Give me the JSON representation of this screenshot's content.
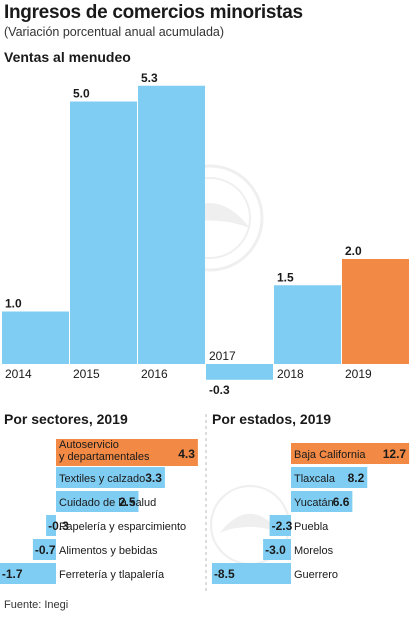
{
  "header": {
    "title": "Ingresos de comercios minoristas",
    "subtitle": "(Variación porcentual anual acumulada)"
  },
  "footer": {
    "source": "Fuente: Inegi"
  },
  "colors": {
    "normal": "#7fcdf3",
    "highlight": "#f28a45",
    "text": "#1a1a1a"
  },
  "chart_data": [
    {
      "type": "bar",
      "title": "Ventas al menudeo",
      "categories": [
        "2014",
        "2015",
        "2016",
        "2017",
        "2018",
        "2019"
      ],
      "values": [
        1.0,
        5.0,
        5.3,
        -0.3,
        1.5,
        2.0
      ],
      "highlight": [
        "2019"
      ]
    },
    {
      "type": "bar",
      "orientation": "horizontal",
      "title": "Por sectores, 2019",
      "categories": [
        "Autoservicio y departamentales",
        "Textiles y calzado",
        "Cuidado de la salud",
        "Papelería y esparcimiento",
        "Alimentos y bebidas",
        "Ferretería y tlapalería"
      ],
      "values": [
        4.3,
        3.3,
        2.5,
        -0.3,
        -0.7,
        -1.7
      ],
      "highlight": [
        "Autoservicio y departamentales"
      ]
    },
    {
      "type": "bar",
      "orientation": "horizontal",
      "title": "Por estados, 2019",
      "categories": [
        "Baja California",
        "Tlaxcala",
        "Yucatán",
        "Puebla",
        "Morelos",
        "Guerrero"
      ],
      "values": [
        12.7,
        8.2,
        6.6,
        -2.3,
        -3.0,
        -8.5
      ],
      "highlight": [
        "Baja California"
      ]
    }
  ]
}
